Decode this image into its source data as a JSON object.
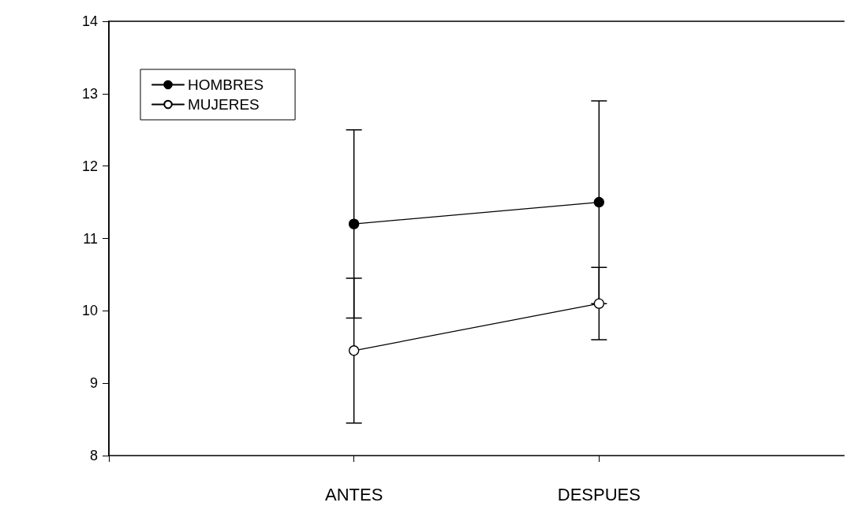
{
  "chart_data": {
    "type": "line",
    "categories": [
      "ANTES",
      "DESPUES"
    ],
    "series": [
      {
        "name": "HOMBRES",
        "color": "#000000",
        "values": [
          11.2,
          11.5
        ],
        "errors": [
          1.3,
          1.4
        ]
      },
      {
        "name": "MUJERES",
        "color": "#000000",
        "colors": [
          "#ffffff",
          "#ffffff"
        ],
        "values": [
          9.45,
          10.1
        ],
        "errors": [
          1.0,
          0.5
        ]
      }
    ],
    "ylim": [
      8,
      14
    ],
    "yticks": [
      8,
      9,
      10,
      11,
      12,
      13,
      14
    ],
    "grid": false,
    "legend": "top left",
    "marker": "circle",
    "line_style": "solid"
  }
}
